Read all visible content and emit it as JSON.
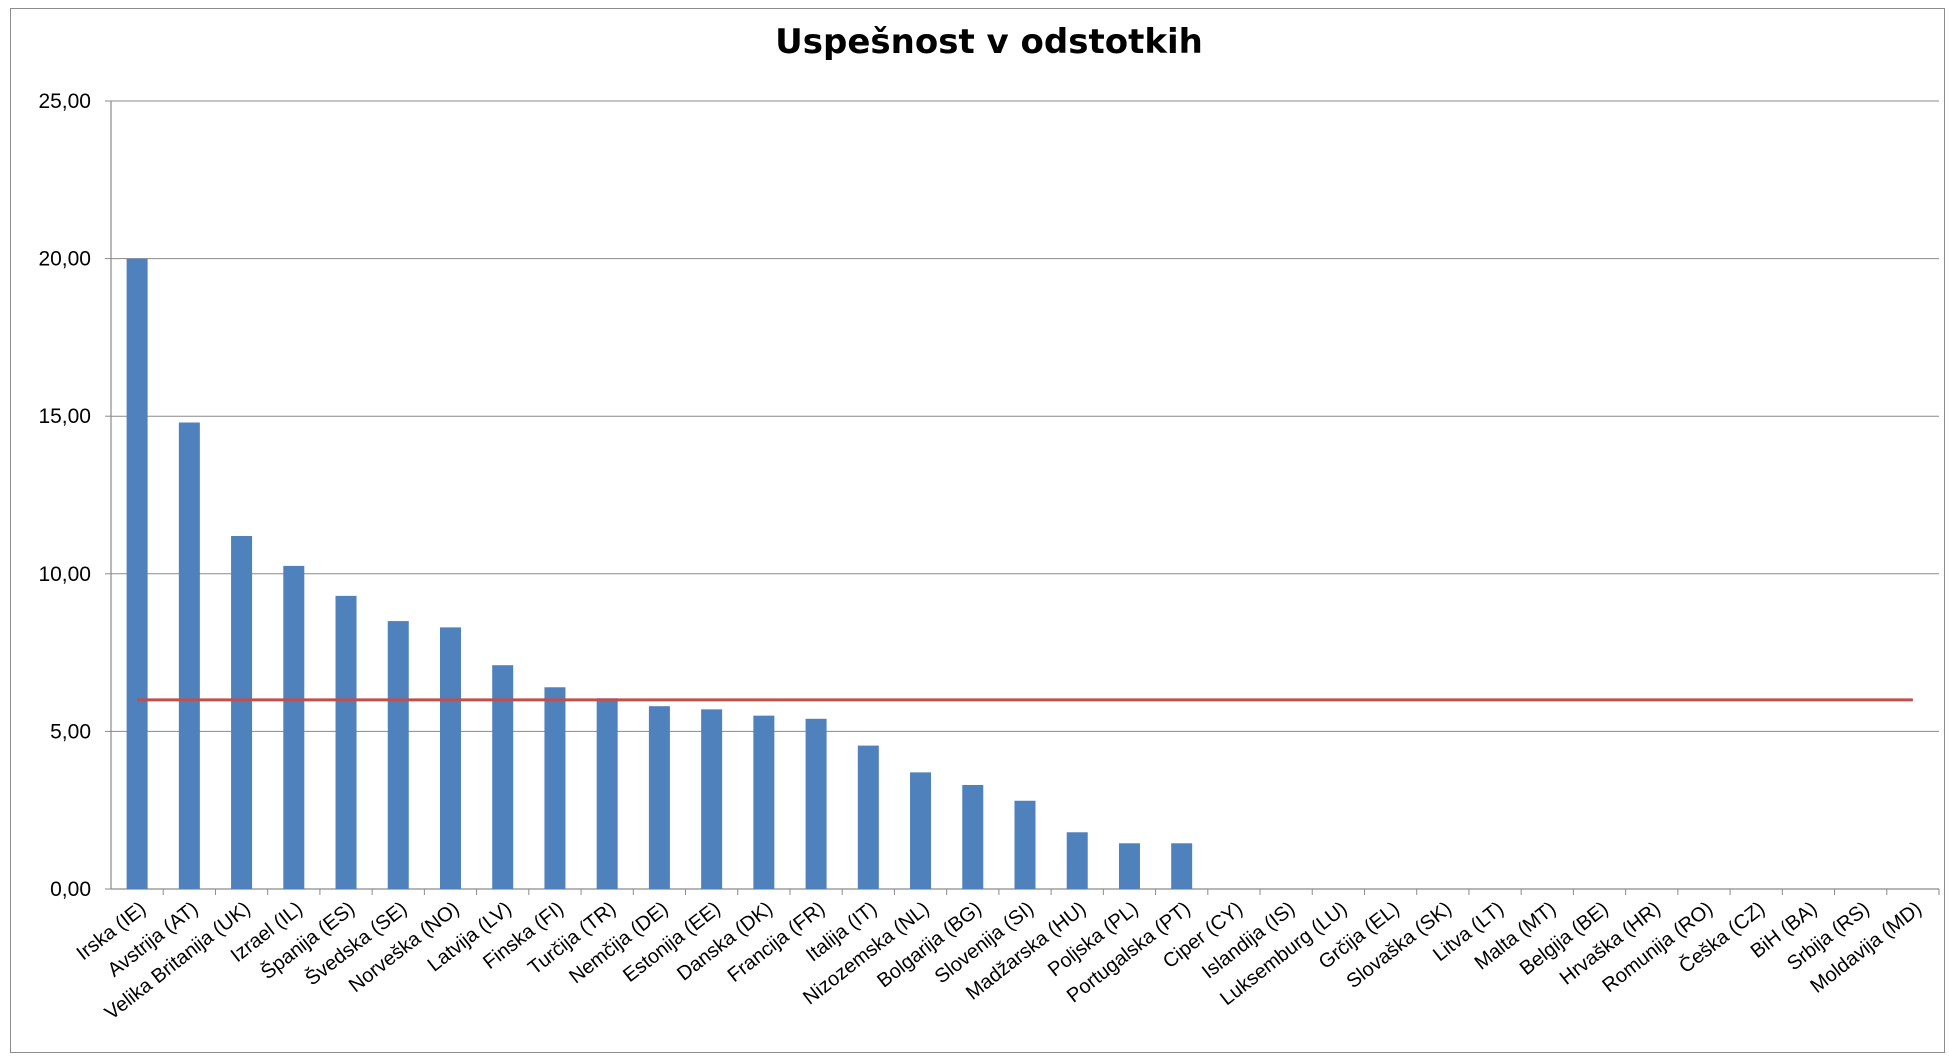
{
  "chart_data": {
    "type": "bar",
    "title": "Uspešnost v odstotkih",
    "xlabel": "",
    "ylabel": "",
    "ylim": [
      0,
      25
    ],
    "yticks": [
      0,
      5,
      10,
      15,
      20,
      25
    ],
    "ytick_labels": [
      "0,00",
      "5,00",
      "10,00",
      "15,00",
      "20,00",
      "25,00"
    ],
    "grid": true,
    "legend": "none",
    "categories": [
      "Irska (IE)",
      "Avstrija (AT)",
      "Velika Britanija (UK)",
      "Izrael (IL)",
      "Španija (ES)",
      "Švedska (SE)",
      "Norveška (NO)",
      "Latvija (LV)",
      "Finska (FI)",
      "Turčija (TR)",
      "Nemčija (DE)",
      "Estonija (EE)",
      "Danska (DK)",
      "Francija (FR)",
      "Italija (IT)",
      "Nizozemska (NL)",
      "Bolgarija (BG)",
      "Slovenija (SI)",
      "Madžarska (HU)",
      "Poljska (PL)",
      "Portugalska (PT)",
      "Ciper (CY)",
      "Islandija (IS)",
      "Luksemburg (LU)",
      "Grčija (EL)",
      "Slovaška (SK)",
      "Litva (LT)",
      "Malta (MT)",
      "Belgija (BE)",
      "Hrvaška (HR)",
      "Romunija (RO)",
      "Češka (CZ)",
      "BiH (BA)",
      "Srbija (RS)",
      "Moldavija (MD)"
    ],
    "series": [
      {
        "type": "bar",
        "values": [
          20.0,
          14.8,
          11.2,
          10.25,
          9.3,
          8.5,
          8.3,
          7.1,
          6.4,
          6.05,
          5.8,
          5.7,
          5.5,
          5.4,
          4.55,
          3.7,
          3.3,
          2.8,
          1.8,
          1.45,
          1.45,
          0,
          0,
          0,
          0,
          0,
          0,
          0,
          0,
          0,
          0,
          0,
          0,
          0,
          0
        ],
        "color": "#4f81bd"
      },
      {
        "type": "line",
        "value": 6.0,
        "color": "#c0504d"
      }
    ]
  }
}
